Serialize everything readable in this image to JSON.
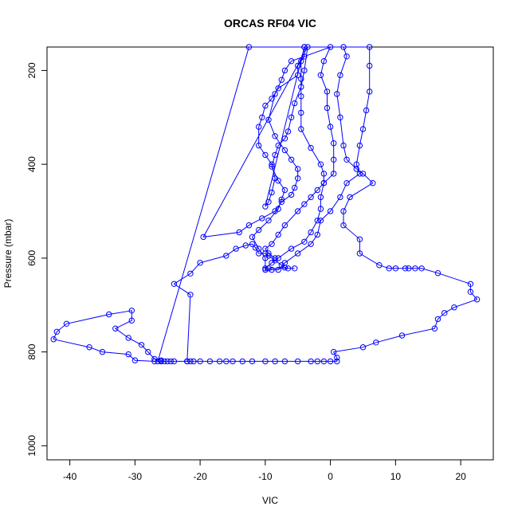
{
  "chart_data": {
    "type": "line",
    "title": "ORCAS RF04 VIC",
    "xlabel": "VIC",
    "ylabel": "Pressure (mbar)",
    "xlim": [
      -43.5,
      25
    ],
    "ylim": [
      1030,
      150
    ],
    "y_reversed": true,
    "grid": false,
    "legend": "none",
    "x_ticks": [
      -40,
      -30,
      -20,
      -10,
      0,
      10,
      20
    ],
    "y_ticks": [
      200,
      400,
      600,
      800,
      1000
    ],
    "series": [
      {
        "color": "#0000ff",
        "points": [
          [
            -26.5,
            820
          ],
          [
            -12.5,
            150
          ],
          [
            2,
            150
          ],
          [
            2.5,
            170
          ],
          [
            1.5,
            210
          ],
          [
            1,
            250
          ],
          [
            1.5,
            300
          ],
          [
            2,
            360
          ],
          [
            2.5,
            390
          ],
          [
            4,
            410
          ],
          [
            5,
            420
          ],
          [
            6.5,
            440
          ],
          [
            3,
            470
          ],
          [
            2,
            500
          ],
          [
            2,
            530
          ],
          [
            4.5,
            560
          ],
          [
            4.5,
            590
          ],
          [
            7.5,
            615
          ],
          [
            9,
            622
          ],
          [
            10,
            622
          ],
          [
            11.5,
            622
          ],
          [
            12,
            622
          ],
          [
            13,
            622
          ],
          [
            14,
            622
          ],
          [
            16.5,
            632
          ],
          [
            21.5,
            655
          ],
          [
            21.5,
            672
          ],
          [
            22.5,
            688
          ],
          [
            19,
            705
          ],
          [
            17.5,
            717
          ],
          [
            16.5,
            730
          ],
          [
            16,
            750
          ],
          [
            11,
            765
          ],
          [
            7,
            780
          ],
          [
            5,
            790
          ],
          [
            0.5,
            800
          ],
          [
            1,
            812
          ],
          [
            1,
            820
          ],
          [
            0,
            820
          ],
          [
            -1,
            820
          ],
          [
            -2,
            820
          ],
          [
            -3,
            820
          ],
          [
            -5,
            820
          ],
          [
            -7,
            820
          ],
          [
            -8.5,
            820
          ],
          [
            -10,
            820
          ],
          [
            -12,
            820
          ],
          [
            -13.5,
            820
          ],
          [
            -15,
            820
          ],
          [
            -16,
            820
          ],
          [
            -17,
            820
          ],
          [
            -18.5,
            820
          ],
          [
            -20,
            820
          ],
          [
            -21.5,
            820
          ],
          [
            -22,
            820
          ],
          [
            -24.5,
            820
          ],
          [
            -25,
            820
          ],
          [
            -26,
            820
          ],
          [
            -27,
            820
          ],
          [
            -30,
            818
          ],
          [
            -31,
            805
          ],
          [
            -35,
            800
          ],
          [
            -37,
            790
          ],
          [
            -42.5,
            773
          ],
          [
            -42,
            757
          ],
          [
            -40.5,
            740
          ],
          [
            -34,
            720
          ],
          [
            -30.5,
            712
          ],
          [
            -30.5,
            733
          ],
          [
            -33,
            750
          ],
          [
            -31,
            770
          ],
          [
            -29,
            785
          ],
          [
            -28,
            800
          ],
          [
            -27,
            815
          ],
          [
            -26,
            818
          ],
          [
            -25.5,
            820
          ],
          [
            -24,
            820
          ],
          [
            -22,
            820
          ],
          [
            -21,
            820
          ],
          [
            -22,
            820
          ],
          [
            -21.5,
            678
          ],
          [
            -24,
            655
          ],
          [
            -21.5,
            633
          ],
          [
            -20,
            610
          ],
          [
            -16,
            595
          ],
          [
            -14.5,
            580
          ],
          [
            -13,
            573
          ],
          [
            -12,
            570
          ],
          [
            -11.5,
            578
          ],
          [
            -11,
            590
          ],
          [
            -10,
            590
          ],
          [
            -9.5,
            595
          ],
          [
            -8.5,
            605
          ],
          [
            -7.5,
            615
          ],
          [
            -7,
            620
          ],
          [
            -6.5,
            622
          ],
          [
            -5.5,
            622
          ],
          [
            -9.5,
            622
          ],
          [
            -10,
            622
          ],
          [
            -9,
            610
          ],
          [
            -8,
            600
          ],
          [
            -6,
            580
          ],
          [
            -4,
            565
          ],
          [
            -3,
            545
          ],
          [
            -2,
            520
          ],
          [
            -1.5,
            495
          ],
          [
            -1.5,
            470
          ],
          [
            -1,
            440
          ],
          [
            -1,
            420
          ],
          [
            -1.5,
            400
          ],
          [
            -3,
            365
          ],
          [
            -4.5,
            325
          ],
          [
            -4.5,
            290
          ],
          [
            -4.5,
            255
          ],
          [
            -4.5,
            218
          ],
          [
            -4.5,
            180
          ],
          [
            -4,
            150
          ],
          [
            -10,
            490
          ],
          [
            -9.5,
            480
          ],
          [
            -9,
            460
          ],
          [
            -8.5,
            430
          ],
          [
            -9,
            400
          ],
          [
            -10,
            380
          ],
          [
            -11,
            360
          ],
          [
            -11,
            320
          ],
          [
            -10.5,
            300
          ],
          [
            -10,
            275
          ],
          [
            -9,
            260
          ],
          [
            -8,
            238
          ],
          [
            -5,
            210
          ],
          [
            -5,
            190
          ],
          [
            -4,
            170
          ],
          [
            -4,
            150
          ],
          [
            6,
            150
          ],
          [
            6,
            190
          ],
          [
            6,
            245
          ],
          [
            5.5,
            285
          ],
          [
            5,
            325
          ],
          [
            4.5,
            360
          ],
          [
            4,
            400
          ],
          [
            4.5,
            420
          ],
          [
            2.5,
            440
          ],
          [
            1.5,
            470
          ],
          [
            0,
            500
          ],
          [
            -1.5,
            520
          ],
          [
            -2,
            550
          ],
          [
            -3,
            570
          ],
          [
            -5,
            590
          ],
          [
            -7,
            610
          ],
          [
            -8,
            625
          ],
          [
            -9,
            625
          ],
          [
            -10,
            625
          ],
          [
            -10,
            600
          ],
          [
            -11,
            580
          ],
          [
            -12,
            555
          ],
          [
            -11,
            540
          ],
          [
            -9.5,
            520
          ],
          [
            -8,
            495
          ],
          [
            -7.5,
            475
          ],
          [
            -7,
            455
          ],
          [
            -8,
            435
          ],
          [
            -9,
            405
          ],
          [
            -8.5,
            380
          ],
          [
            -8,
            360
          ],
          [
            -7,
            345
          ],
          [
            -6.5,
            330
          ],
          [
            -6,
            300
          ],
          [
            -5.5,
            270
          ],
          [
            -4.5,
            235
          ],
          [
            -4,
            200
          ],
          [
            -3.5,
            150
          ],
          [
            -19.5,
            555
          ],
          [
            -14,
            545
          ],
          [
            -12.5,
            530
          ],
          [
            -10.5,
            515
          ],
          [
            -8.5,
            500
          ],
          [
            -7.5,
            480
          ],
          [
            -6,
            465
          ],
          [
            -5.5,
            450
          ],
          [
            -5,
            430
          ],
          [
            -5,
            410
          ],
          [
            -6,
            390
          ],
          [
            -7,
            370
          ],
          [
            -8.5,
            340
          ],
          [
            -9.5,
            305
          ],
          [
            -8.5,
            250
          ],
          [
            -7.5,
            220
          ],
          [
            -7,
            200
          ],
          [
            -6,
            180
          ],
          [
            0,
            150
          ],
          [
            -1,
            180
          ],
          [
            -1.5,
            210
          ],
          [
            -0.5,
            245
          ],
          [
            -0.5,
            280
          ],
          [
            0,
            320
          ],
          [
            0.5,
            355
          ],
          [
            0.5,
            390
          ],
          [
            0.5,
            420
          ],
          [
            -1,
            440
          ],
          [
            -2,
            455
          ],
          [
            -3,
            470
          ],
          [
            -4,
            485
          ],
          [
            -5,
            500
          ],
          [
            -7,
            530
          ],
          [
            -8,
            550
          ],
          [
            -9,
            570
          ],
          [
            -10,
            580
          ],
          [
            -9.5,
            590
          ],
          [
            -8.5,
            600
          ]
        ]
      }
    ]
  }
}
